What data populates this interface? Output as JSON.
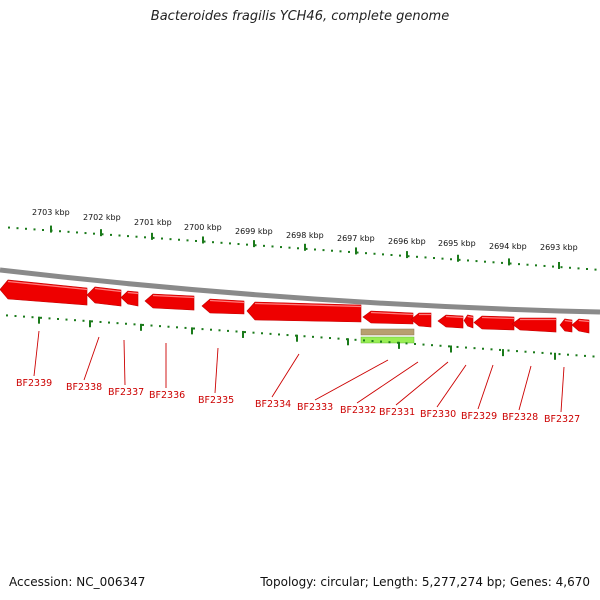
{
  "title": "Bacteroides fragilis YCH46, complete genome",
  "footer": {
    "accession": "Accession: NC_006347",
    "info": "Topology: circular; Length: 5,277,274 bp; Genes: 4,670"
  },
  "colors": {
    "gene": "#ee0000",
    "gene_label": "#cc0000",
    "tick": "#1a7a1a",
    "backbone": "#8a8a8a",
    "feature_a": "#b8a070",
    "feature_b": "#99ee55"
  },
  "scale": {
    "unit": "kbp",
    "ticks": [
      "2703 kbp",
      "2702 kbp",
      "2701 kbp",
      "2700 kbp",
      "2699 kbp",
      "2698 kbp",
      "2697 kbp",
      "2696 kbp",
      "2695 kbp",
      "2694 kbp",
      "2693 kbp"
    ]
  },
  "genes": [
    {
      "label": "BF2339",
      "strand": "reverse"
    },
    {
      "label": "BF2338",
      "strand": "reverse"
    },
    {
      "label": "BF2337",
      "strand": "reverse"
    },
    {
      "label": "BF2336",
      "strand": "reverse"
    },
    {
      "label": "BF2335",
      "strand": "reverse"
    },
    {
      "label": "BF2334",
      "strand": "reverse"
    },
    {
      "label": "BF2333",
      "strand": "reverse"
    },
    {
      "label": "BF2332",
      "strand": "reverse"
    },
    {
      "label": "BF2331",
      "strand": "reverse"
    },
    {
      "label": "BF2330",
      "strand": "reverse"
    },
    {
      "label": "BF2329",
      "strand": "reverse"
    },
    {
      "label": "BF2328",
      "strand": "reverse"
    },
    {
      "label": "BF2327",
      "strand": "reverse"
    }
  ]
}
